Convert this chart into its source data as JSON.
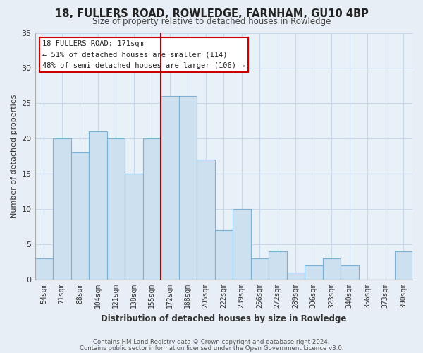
{
  "title": "18, FULLERS ROAD, ROWLEDGE, FARNHAM, GU10 4BP",
  "subtitle": "Size of property relative to detached houses in Rowledge",
  "xlabel": "Distribution of detached houses by size in Rowledge",
  "ylabel": "Number of detached properties",
  "bar_color": "#cce0f0",
  "bar_edge_color": "#7ab0d4",
  "categories": [
    "54sqm",
    "71sqm",
    "88sqm",
    "104sqm",
    "121sqm",
    "138sqm",
    "155sqm",
    "172sqm",
    "188sqm",
    "205sqm",
    "222sqm",
    "239sqm",
    "256sqm",
    "272sqm",
    "289sqm",
    "306sqm",
    "323sqm",
    "340sqm",
    "356sqm",
    "373sqm",
    "390sqm"
  ],
  "values": [
    3,
    20,
    18,
    21,
    20,
    15,
    20,
    26,
    26,
    17,
    7,
    10,
    3,
    4,
    1,
    2,
    3,
    2,
    0,
    0,
    4
  ],
  "ylim": [
    0,
    35
  ],
  "yticks": [
    0,
    5,
    10,
    15,
    20,
    25,
    30,
    35
  ],
  "marker_index": 7,
  "marker_label": "18 FULLERS ROAD: 171sqm",
  "annotation_line1": "← 51% of detached houses are smaller (114)",
  "annotation_line2": "48% of semi-detached houses are larger (106) →",
  "marker_color": "#aa0000",
  "annotation_box_edge": "#cc0000",
  "footer1": "Contains HM Land Registry data © Crown copyright and database right 2024.",
  "footer2": "Contains public sector information licensed under the Open Government Licence v3.0.",
  "background_color": "#e8eef5",
  "plot_bg_color": "#e8f0f8",
  "grid_color": "#c8d8e8"
}
